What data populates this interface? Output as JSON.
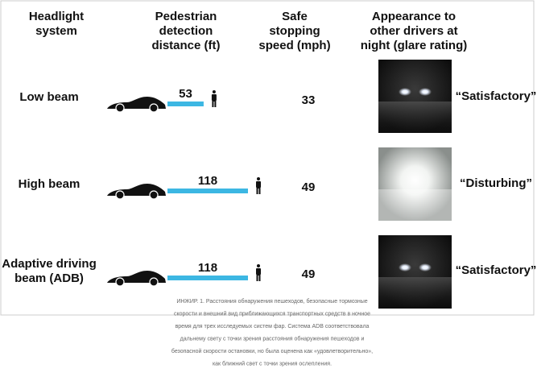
{
  "header": {
    "columns": [
      [
        "Headlight",
        "system"
      ],
      [
        "Pedestrian",
        "detection",
        "distance (ft)"
      ],
      [
        "Safe",
        "stopping",
        "speed (mph)"
      ],
      [
        "Appearance to",
        "other drivers at",
        "night (glare rating)"
      ]
    ]
  },
  "rows": [
    {
      "label": [
        "Low beam"
      ],
      "distance": 53,
      "speed": 33,
      "glare": "“Satisfactory”"
    },
    {
      "label": [
        "High beam"
      ],
      "distance": 118,
      "speed": 49,
      "glare": "“Disturbing”"
    },
    {
      "label": [
        "Adaptive driving",
        "beam (ADB)"
      ],
      "distance": 118,
      "speed": 49,
      "glare": "“Satisfactory”"
    }
  ],
  "caption": [
    "ИНЖИР. 1. Расстояния обнаружения пешеходов, безопасные тормозные",
    "скорости и внешний вид приближающихся транспортных средств в ночное",
    "время для трех исследуемых систем фар. Система ADB соответствовала",
    "дальнему свету с точки зрения расстояния обнаружения пешеходов и",
    "безопасной скорости остановки, но была оценена как «удовлетворительно»,",
    "как ближний свет с точки зрения ослепления."
  ]
}
